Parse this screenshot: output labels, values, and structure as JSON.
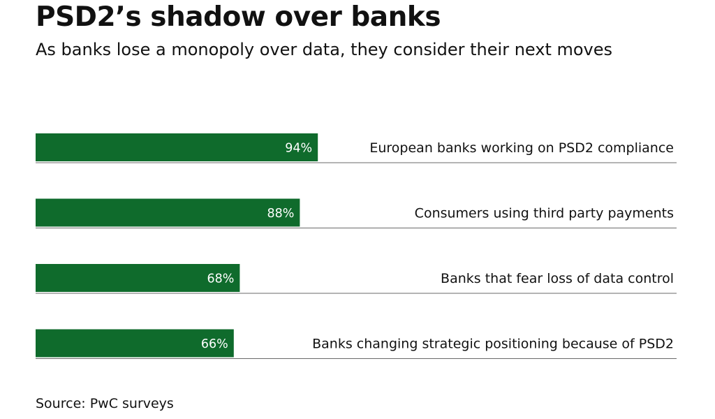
{
  "chart_data": {
    "type": "bar",
    "orientation": "horizontal",
    "title": "PSD2’s shadow over banks",
    "subtitle": "As banks lose a monopoly over data, they consider their next moves",
    "categories": [
      "European banks working on PSD2 compliance",
      "Consumers using third party payments",
      "Banks that fear loss of data control",
      "Banks changing strategic positioning because of PSD2"
    ],
    "values": [
      94,
      88,
      68,
      66
    ],
    "value_labels": [
      "94%",
      "88%",
      "68%",
      "66%"
    ],
    "unit": "%",
    "bar_color": "#0f6b2c",
    "rule_color": "#6a6a6a",
    "grid": false,
    "legend": "none",
    "source": "Source: PwC surveys"
  }
}
